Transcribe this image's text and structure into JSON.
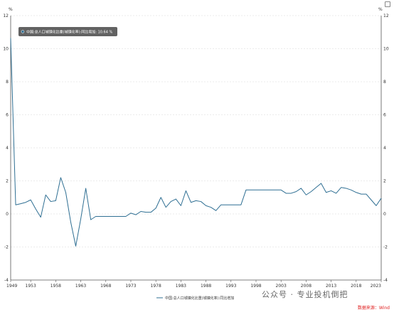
{
  "chart_data": {
    "type": "line",
    "yunit_left": "%",
    "yunit_right": "%",
    "ylim": [
      -4,
      12
    ],
    "yticks": [
      -4,
      -2,
      0,
      2,
      4,
      6,
      8,
      10,
      12
    ],
    "xlim": [
      1949,
      2023
    ],
    "xticks": [
      1949,
      1953,
      1958,
      1963,
      1968,
      1973,
      1978,
      1983,
      1988,
      1993,
      1998,
      2003,
      2008,
      2013,
      2018,
      2023
    ],
    "grid": "horizontal-dashed",
    "legend_position": "bottom-center",
    "series": [
      {
        "name": "中国:总人口城镇化比重(城镇化率):同比增加",
        "color": "#2f6f93",
        "x": [
          1949,
          1950,
          1951,
          1952,
          1953,
          1954,
          1955,
          1956,
          1957,
          1958,
          1959,
          1960,
          1961,
          1962,
          1963,
          1964,
          1965,
          1966,
          1967,
          1968,
          1969,
          1970,
          1971,
          1972,
          1973,
          1974,
          1975,
          1976,
          1977,
          1978,
          1979,
          1980,
          1981,
          1982,
          1983,
          1984,
          1985,
          1986,
          1987,
          1988,
          1989,
          1990,
          1991,
          1992,
          1993,
          1994,
          1995,
          1996,
          1997,
          1998,
          1999,
          2000,
          2001,
          2002,
          2003,
          2004,
          2005,
          2006,
          2007,
          2008,
          2009,
          2010,
          2011,
          2012,
          2013,
          2014,
          2015,
          2016,
          2017,
          2018,
          2019,
          2020,
          2021,
          2022,
          2023
        ],
        "y": [
          10.64,
          0.55,
          0.62,
          0.7,
          0.85,
          0.3,
          -0.2,
          1.15,
          0.75,
          0.8,
          2.2,
          1.3,
          -0.5,
          -1.95,
          -0.3,
          1.55,
          -0.35,
          -0.15,
          -0.15,
          -0.15,
          -0.15,
          -0.15,
          -0.15,
          -0.15,
          0.05,
          -0.05,
          0.15,
          0.1,
          0.1,
          0.35,
          1.0,
          0.4,
          0.75,
          0.9,
          0.5,
          1.4,
          0.7,
          0.8,
          0.75,
          0.5,
          0.4,
          0.2,
          0.55,
          0.55,
          0.55,
          0.55,
          0.55,
          1.45,
          1.45,
          1.45,
          1.45,
          1.45,
          1.45,
          1.45,
          1.45,
          1.25,
          1.25,
          1.35,
          1.55,
          1.15,
          1.35,
          1.6,
          1.85,
          1.3,
          1.4,
          1.25,
          1.6,
          1.55,
          1.45,
          1.3,
          1.2,
          1.2,
          0.85,
          0.5,
          0.95
        ]
      }
    ],
    "tooltip": {
      "year": 1949,
      "label": "中国:总人口城镇化比重(城镇化率):同比增加",
      "value": "10.64",
      "unit": "%"
    }
  },
  "watermark": "公众号 · 专业投机倒把",
  "source": "数据来源：Wind"
}
